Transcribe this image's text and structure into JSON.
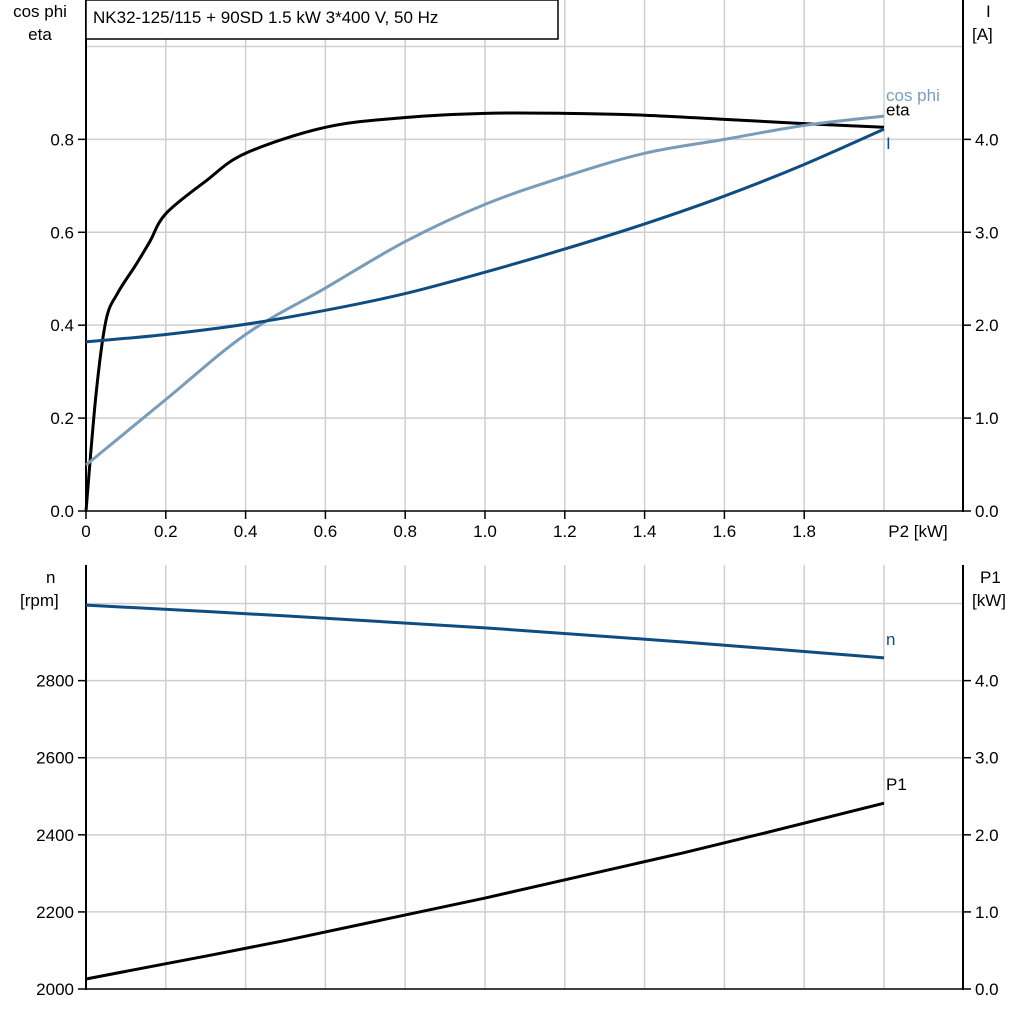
{
  "chart_data": [
    {
      "type": "line",
      "title": "NK32-125/115 + 90SD   1.5 kW   3*400 V, 50 Hz",
      "xlabel": "P2 [kW]",
      "ylabel_left": [
        "cos phi",
        "eta"
      ],
      "ylabel_right": [
        "I",
        "[A]"
      ],
      "xlim": [
        0,
        2.2
      ],
      "ylim_left": [
        0,
        1.1
      ],
      "ylim_right": [
        0,
        5.5
      ],
      "xticks": [
        "0",
        "0.2",
        "0.4",
        "0.6",
        "0.8",
        "1.0",
        "1.2",
        "1.4",
        "1.6",
        "1.8"
      ],
      "yticks_left": [
        "0.0",
        "0.2",
        "0.4",
        "0.6",
        "0.8"
      ],
      "yticks_right": [
        "0.0",
        "1.0",
        "2.0",
        "3.0",
        "4.0"
      ],
      "grid": true,
      "series": [
        {
          "name": "eta",
          "axis": "left",
          "color": "#000000",
          "x": [
            0,
            0.025,
            0.05,
            0.08,
            0.125,
            0.16,
            0.2,
            0.3,
            0.4,
            0.6,
            0.8,
            1.0,
            1.2,
            1.4,
            1.6,
            1.8,
            2.0
          ],
          "y": [
            0,
            0.25,
            0.41,
            0.47,
            0.53,
            0.58,
            0.64,
            0.71,
            0.77,
            0.826,
            0.847,
            0.856,
            0.856,
            0.852,
            0.843,
            0.834,
            0.826
          ]
        },
        {
          "name": "cos phi",
          "axis": "left",
          "color": "#7a9cbb",
          "x": [
            0,
            0.2,
            0.4,
            0.6,
            0.8,
            1.0,
            1.2,
            1.4,
            1.6,
            1.8,
            2.0
          ],
          "y": [
            0.099,
            0.24,
            0.38,
            0.48,
            0.58,
            0.66,
            0.72,
            0.77,
            0.8,
            0.83,
            0.85
          ]
        },
        {
          "name": "I",
          "axis": "right",
          "color": "#0f4c81",
          "x": [
            0,
            0.2,
            0.4,
            0.6,
            0.8,
            1.0,
            1.2,
            1.4,
            1.6,
            1.8,
            2.0
          ],
          "y": [
            1.82,
            1.9,
            2.01,
            2.16,
            2.34,
            2.57,
            2.82,
            3.09,
            3.39,
            3.73,
            4.11
          ]
        }
      ]
    },
    {
      "type": "line",
      "ylabel_left": [
        "n",
        "[rpm]"
      ],
      "ylabel_right": [
        "P1",
        "[kW]"
      ],
      "xlim": [
        0,
        2.2
      ],
      "ylim_left": [
        2000,
        3100
      ],
      "ylim_right": [
        0,
        5.5
      ],
      "yticks_left": [
        "2000",
        "2200",
        "2400",
        "2600",
        "2800"
      ],
      "yticks_right": [
        "0.0",
        "1.0",
        "2.0",
        "3.0",
        "4.0"
      ],
      "grid": true,
      "series": [
        {
          "name": "n",
          "axis": "left",
          "color": "#0f4c81",
          "x": [
            0,
            0.5,
            1.0,
            1.5,
            2.0
          ],
          "y": [
            2996,
            2968,
            2937,
            2900,
            2859
          ]
        },
        {
          "name": "P1",
          "axis": "right",
          "color": "#000000",
          "x": [
            0,
            0.5,
            1.0,
            1.5,
            2.0
          ],
          "y": [
            0.13,
            0.63,
            1.18,
            1.77,
            2.41
          ]
        }
      ]
    }
  ]
}
